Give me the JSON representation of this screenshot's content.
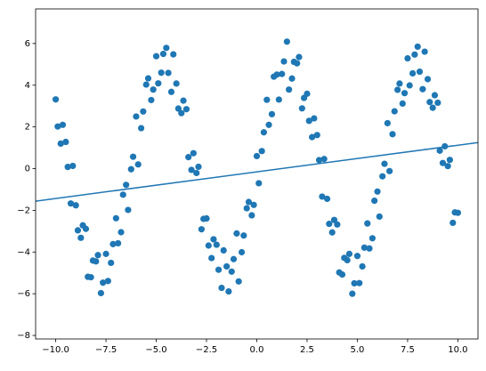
{
  "chart_data": {
    "type": "scatter",
    "xlim": [
      -11,
      11
    ],
    "ylim": [
      -8.17,
      7.66
    ],
    "xticks": [
      {
        "value": -10,
        "label": "−10.0"
      },
      {
        "value": -7.5,
        "label": "−7.5"
      },
      {
        "value": -5,
        "label": "−5.0"
      },
      {
        "value": -2.5,
        "label": "−2.5"
      },
      {
        "value": 0,
        "label": "0.0"
      },
      {
        "value": 2.5,
        "label": "2.5"
      },
      {
        "value": 5,
        "label": "5.0"
      },
      {
        "value": 7.5,
        "label": "7.5"
      },
      {
        "value": 10,
        "label": "10.0"
      }
    ],
    "yticks": [
      {
        "value": -8,
        "label": "−8"
      },
      {
        "value": -6,
        "label": "−6"
      },
      {
        "value": -4,
        "label": "−4"
      },
      {
        "value": -2,
        "label": "−2"
      },
      0,
      2,
      4,
      6
    ],
    "series": [
      {
        "type": "scatter",
        "color": "#1f77b4",
        "x": [
          -10,
          -9.75,
          -9.5,
          -9.25,
          -9,
          -8.75,
          -8.5,
          -8.25,
          -8,
          -7.75,
          -7.5,
          -7.25,
          -7,
          -6.75,
          -6.5,
          -6.25,
          -6,
          -5.75,
          -5.5,
          -5.25,
          -5,
          -4.75,
          -4.5,
          -4.25,
          -4,
          -3.75,
          -3.5,
          -3.25,
          -3,
          -2.75,
          -2.5,
          -2.25,
          -2,
          -1.75,
          -1.5,
          -1.25,
          -1,
          -0.75,
          -0.5,
          -0.25,
          0,
          0.25,
          0.5,
          0.75,
          1,
          1.25,
          1.5,
          1.75,
          2,
          2.25,
          2.5,
          2.75,
          3,
          3.25,
          3.5,
          3.75,
          4,
          4.25,
          4.5,
          4.75,
          5,
          5.25,
          5.5,
          5.75,
          6,
          6.25,
          6.5,
          6.75,
          7,
          7.25,
          7.5,
          7.75,
          8,
          8.25,
          8.5,
          8.75,
          9,
          9.25,
          9.5,
          9.75,
          10,
          -9.9,
          -9.65,
          -9.4,
          -9.15,
          -8.9,
          -8.65,
          -8.4,
          -8.15,
          -7.9,
          -7.65,
          -7.4,
          -7.15,
          -6.9,
          -6.65,
          -6.4,
          -6.15,
          -5.9,
          -5.65,
          -5.4,
          -5.15,
          -4.9,
          -4.65,
          -4.4,
          -4.15,
          -3.9,
          -3.65,
          -3.4,
          -3.15,
          -2.9,
          -2.65,
          -2.4,
          -2.15,
          -1.9,
          -1.65,
          -1.4,
          -1.15,
          -0.9,
          -0.65,
          -0.4,
          -0.15,
          0.1,
          0.35,
          0.6,
          0.85,
          1.1,
          1.35,
          1.6,
          1.85,
          2.1,
          2.35,
          2.6,
          2.85,
          3.1,
          3.35,
          3.6,
          3.85,
          4.1,
          4.35,
          4.6,
          4.85,
          5.1,
          5.35,
          5.6,
          5.85,
          6.1,
          6.35,
          6.6,
          6.85,
          7.1,
          7.35,
          7.6,
          7.85,
          8.1,
          8.35,
          8.6,
          8.85,
          9.1,
          9.35,
          9.6,
          9.85
        ],
        "values": [
          3.32,
          1.2,
          1.28,
          -1.67,
          -1.76,
          -3.32,
          -2.89,
          -5.21,
          -4.45,
          -5.97,
          -4.09,
          -4.52,
          -2.38,
          -3.05,
          -0.78,
          -0.03,
          2.5,
          1.94,
          4.03,
          3.29,
          5.39,
          4.6,
          5.79,
          3.68,
          4.08,
          2.66,
          2.85,
          -0.06,
          -0.21,
          -2.91,
          -2.39,
          -4.29,
          -3.65,
          -5.72,
          -4.69,
          -4.94,
          -3.11,
          -4.01,
          -1.9,
          -2.24,
          0.6,
          0.84,
          3.3,
          2.61,
          4.51,
          4.54,
          6.09,
          4.32,
          5.05,
          2.89,
          3.59,
          1.51,
          1.61,
          -1.34,
          -1.45,
          -3.06,
          -2.68,
          -5.08,
          -4.39,
          -6.0,
          -4.19,
          -4.69,
          -2.63,
          -3.34,
          -1.1,
          -0.37,
          2.18,
          1.65,
          3.78,
          3.12,
          5.29,
          4.57,
          5.85,
          3.81,
          4.29,
          2.92,
          3.16,
          0.27,
          0.12,
          -2.6,
          -2.12,
          2.02,
          2.1,
          0.08,
          0.13,
          -2.96,
          -2.72,
          -5.19,
          -4.41,
          -4.15,
          -5.47,
          -5.39,
          -3.62,
          -3.58,
          -1.25,
          -1.98,
          0.57,
          0.2,
          2.74,
          4.33,
          3.79,
          4.09,
          5.5,
          4.59,
          5.48,
          2.88,
          3.26,
          0.55,
          0.74,
          0.09,
          -2.41,
          -3.69,
          -3.39,
          -4.85,
          -3.92,
          -5.89,
          -4.34,
          -5.41,
          -3.21,
          -1.6,
          -1.74,
          -0.7,
          1.74,
          2.1,
          4.41,
          3.31,
          5.14,
          3.79,
          5.12,
          5.35,
          3.39,
          2.29,
          2.41,
          0.41,
          0.46,
          -2.65,
          -2.46,
          -4.98,
          -4.28,
          -4.09,
          -5.5,
          -5.49,
          -3.79,
          -3.83,
          -1.54,
          -2.3,
          0.23,
          -0.12,
          2.75,
          4.08,
          3.62,
          3.99,
          5.47,
          4.65,
          5.61,
          3.19,
          3.52,
          0.86,
          1.07,
          0.42,
          -2.1
        ]
      },
      {
        "type": "line",
        "color": "#1f77b4",
        "x": [
          -11,
          11
        ],
        "values": [
          -1.56,
          1.25
        ]
      }
    ]
  }
}
